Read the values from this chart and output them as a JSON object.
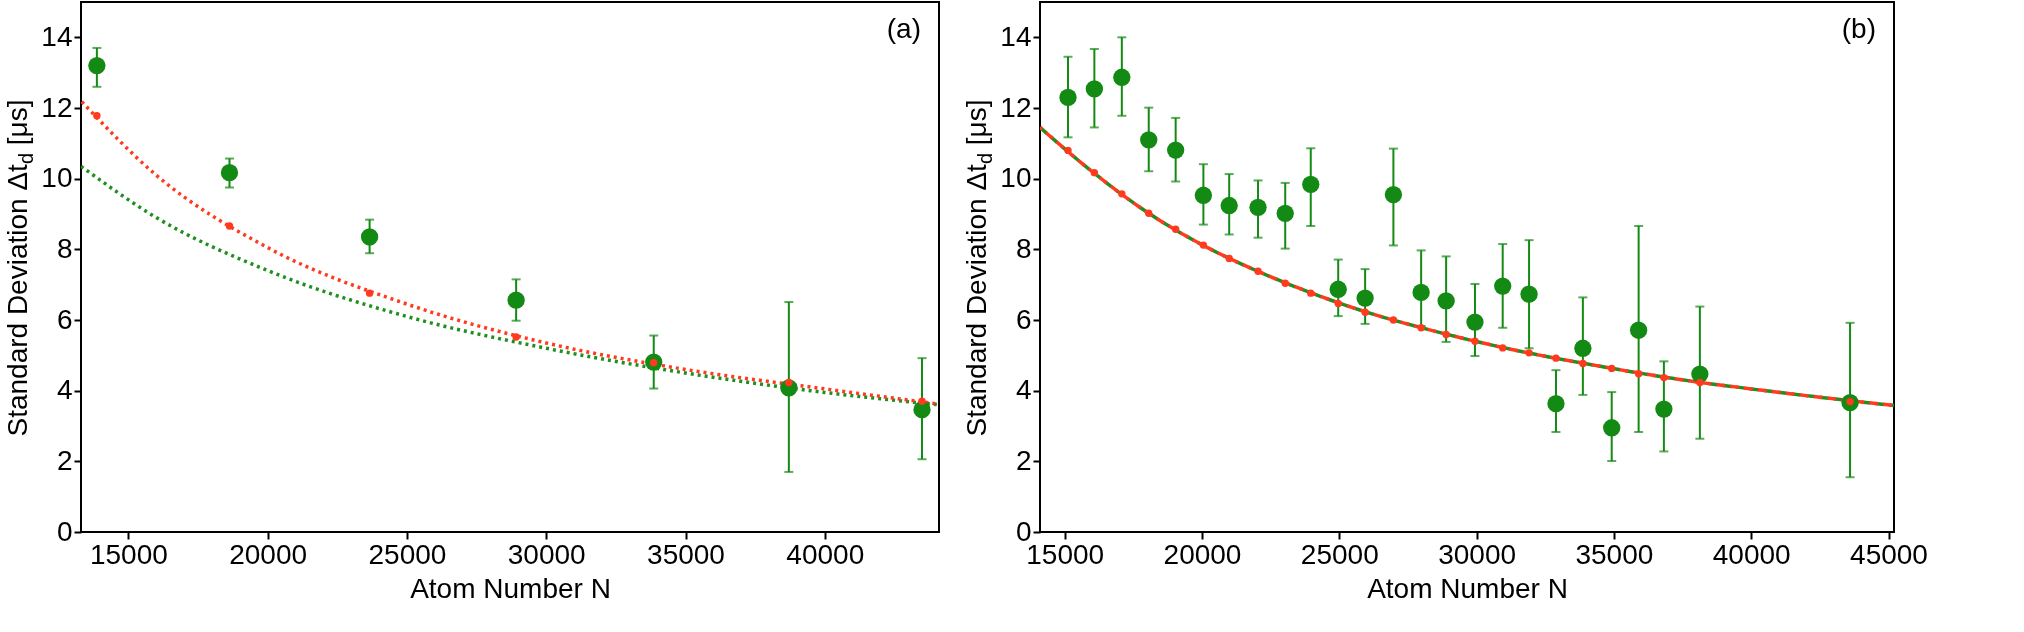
{
  "chart_data": [
    {
      "type": "scatter",
      "ylabel": "Standard Deviation Δt$_{d}$ [μs]",
      "xlabel": "Atom Number N",
      "annotations": [
        "(a)"
      ],
      "xlim": [
        13300,
        44100
      ],
      "xticks": [
        15000,
        20000,
        25000,
        30000,
        35000,
        40000
      ],
      "ylim": [
        0,
        15
      ],
      "yticks": [
        0,
        2,
        4,
        6,
        8,
        10,
        12,
        14
      ],
      "series": [
        {
          "type": "line",
          "color": "#1f8f1f",
          "line_style": "dotted",
          "x": [
            13300,
            16000,
            20000,
            25000,
            30000,
            35000,
            40000,
            44100
          ],
          "values": [
            10.35,
            8.9,
            7.4,
            6.1,
            5.2,
            4.5,
            3.95,
            3.6
          ]
        },
        {
          "type": "line",
          "color": "#ff3b1f",
          "line_style": "dotted",
          "x": [
            13300,
            16000,
            20000,
            25000,
            30000,
            35000,
            40000,
            44100
          ],
          "values": [
            12.2,
            10.1,
            8.05,
            6.45,
            5.35,
            4.6,
            4.05,
            3.62
          ]
        },
        {
          "color": "#ff3b1f",
          "marker": "circle",
          "x": [
            13870,
            18630,
            23660,
            28920,
            33860,
            38710,
            43490
          ],
          "values": [
            11.78,
            8.66,
            6.76,
            5.52,
            4.79,
            4.23,
            3.7
          ]
        },
        {
          "color": "#138a13",
          "marker": "circle",
          "x": [
            13870,
            18630,
            23660,
            28920,
            33860,
            38710,
            43490
          ],
          "values": [
            13.2,
            10.17,
            8.35,
            6.56,
            4.81,
            4.08,
            3.46
          ],
          "errors": [
            [
              12.6,
              13.7
            ],
            [
              9.75,
              10.57
            ],
            [
              7.89,
              8.84
            ],
            [
              5.98,
              7.15
            ],
            [
              4.06,
              5.56
            ],
            [
              1.7,
              6.51
            ],
            [
              2.06,
              4.92
            ]
          ]
        }
      ]
    },
    {
      "type": "scatter",
      "ylabel": "Standard Deviation Δt$_{d}$ [μs]",
      "xlabel": "Atom Number N",
      "annotations": [
        "(b)"
      ],
      "xlim": [
        14100,
        45200
      ],
      "xticks": [
        15000,
        20000,
        25000,
        30000,
        35000,
        40000,
        45000
      ],
      "ylim": [
        0,
        15
      ],
      "yticks": [
        0,
        2,
        4,
        6,
        8,
        10,
        12,
        14
      ],
      "series": [
        {
          "type": "line",
          "color": "#1f8f1f",
          "line_style": "dashed",
          "x": [
            14100,
            16000,
            18000,
            20000,
            22000,
            24000,
            26000,
            28000,
            30000,
            32000,
            34000,
            36000,
            38000,
            40000,
            42000,
            45200
          ],
          "values": [
            11.45,
            10.2,
            9.05,
            8.13,
            7.39,
            6.76,
            6.22,
            5.78,
            5.39,
            5.05,
            4.76,
            4.49,
            4.25,
            4.05,
            3.86,
            3.58
          ]
        },
        {
          "type": "line",
          "color": "#ff3b1f",
          "line_style": "dashed",
          "x": [
            14100,
            16000,
            18000,
            20000,
            22000,
            24000,
            26000,
            28000,
            30000,
            32000,
            34000,
            36000,
            38000,
            40000,
            42000,
            45200
          ],
          "values": [
            11.45,
            10.2,
            9.05,
            8.13,
            7.39,
            6.76,
            6.22,
            5.78,
            5.39,
            5.05,
            4.76,
            4.49,
            4.25,
            4.05,
            3.86,
            3.58
          ]
        },
        {
          "color": "#ff3b1f",
          "marker": "circle",
          "x": [
            15120,
            16080,
            17080,
            18060,
            19040,
            20050,
            20990,
            22040,
            23030,
            23960,
            24960,
            25940,
            26970,
            27980,
            28890,
            29940,
            30950,
            31910,
            32890,
            33870,
            34920,
            35900,
            36820,
            38130,
            43600
          ],
          "values": [
            10.8,
            10.17,
            9.57,
            9.02,
            8.57,
            8.12,
            7.74,
            7.38,
            7.04,
            6.76,
            6.47,
            6.22,
            6.0,
            5.78,
            5.59,
            5.4,
            5.21,
            5.07,
            4.92,
            4.77,
            4.63,
            4.48,
            4.37,
            4.23,
            3.69
          ]
        },
        {
          "color": "#138a13",
          "marker": "circle",
          "x": [
            15120,
            16080,
            17080,
            18060,
            19040,
            20050,
            20990,
            22040,
            23030,
            23960,
            24960,
            25940,
            26970,
            27980,
            28890,
            29940,
            30950,
            31910,
            32890,
            33870,
            34920,
            35900,
            36820,
            38130,
            43600
          ],
          "values": [
            12.3,
            12.54,
            12.87,
            11.1,
            10.81,
            9.53,
            9.24,
            9.19,
            9.02,
            9.84,
            6.87,
            6.62,
            9.55,
            6.78,
            6.54,
            5.94,
            6.96,
            6.73,
            3.63,
            5.2,
            2.95,
            5.71,
            3.48,
            4.47,
            3.66
          ],
          "errors": [
            [
              11.17,
              13.45
            ],
            [
              11.45,
              13.67
            ],
            [
              11.78,
              14.0
            ],
            [
              10.21,
              12.01
            ],
            [
              9.92,
              11.72
            ],
            [
              8.7,
              10.41
            ],
            [
              8.42,
              10.13
            ],
            [
              8.33,
              9.95
            ],
            [
              8.02,
              9.88
            ],
            [
              8.66,
              10.86
            ],
            [
              6.11,
              7.71
            ],
            [
              5.89,
              7.44
            ],
            [
              8.11,
              10.85
            ],
            [
              5.83,
              7.97
            ],
            [
              5.38,
              7.8
            ],
            [
              4.98,
              7.02
            ],
            [
              5.78,
              8.15
            ],
            [
              5.2,
              8.26
            ],
            [
              2.83,
              4.58
            ],
            [
              3.88,
              6.64
            ],
            [
              2.01,
              3.96
            ],
            [
              2.83,
              8.66
            ],
            [
              2.28,
              4.83
            ],
            [
              2.64,
              6.38
            ],
            [
              1.55,
              5.92
            ]
          ]
        }
      ]
    }
  ]
}
